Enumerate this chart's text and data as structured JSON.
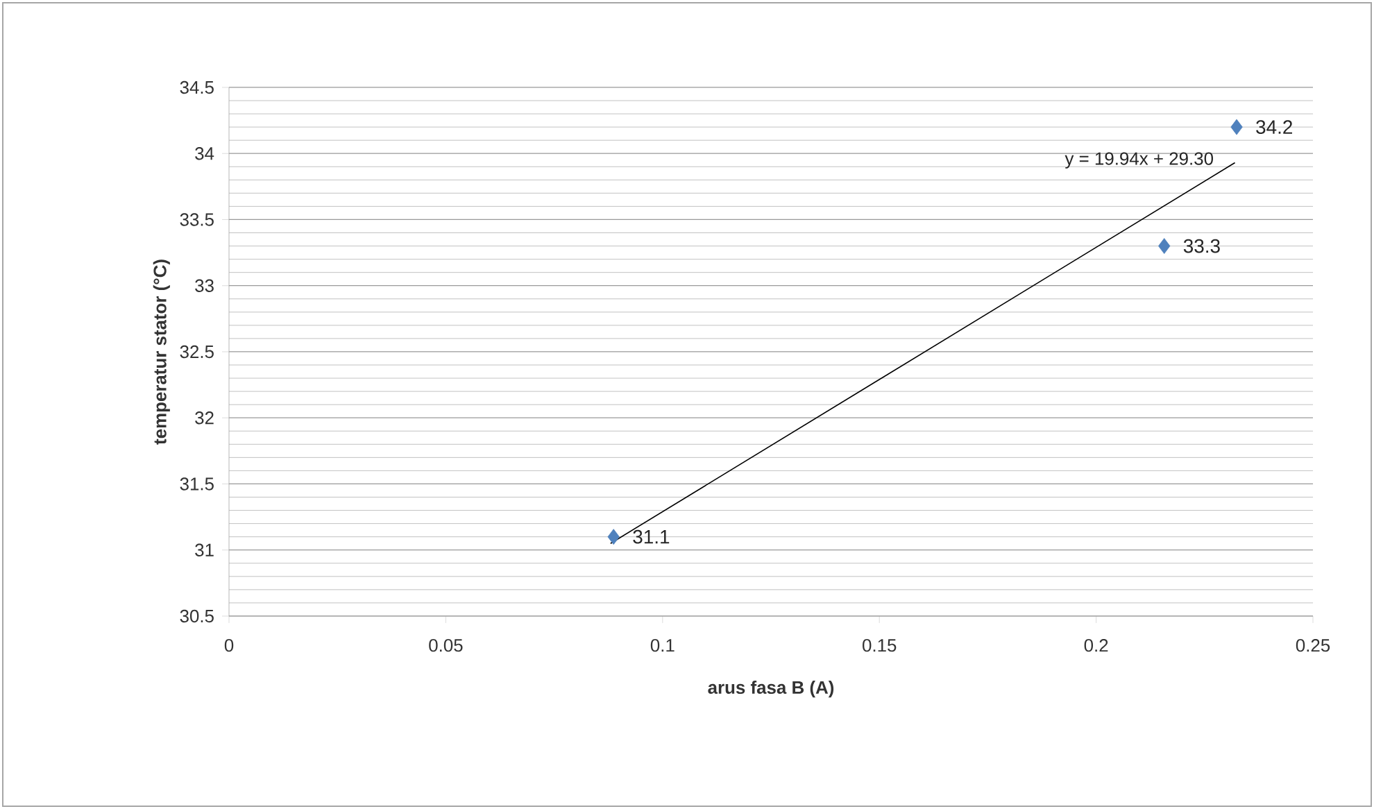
{
  "chart_data": {
    "type": "scatter",
    "xlabel": "arus fasa B (A)",
    "ylabel": "temperatur stator (°C)",
    "series": [
      {
        "color": "#4f81bd",
        "marker": "diamond",
        "x": [
          0.0887,
          0.2157,
          0.2324
        ],
        "values": [
          31.1,
          33.3,
          34.2
        ],
        "value_labels": [
          "31.1",
          "33.3",
          "34.2"
        ]
      },
      {
        "type": "line",
        "marker": "none",
        "color": "#000000",
        "x": [
          0.088,
          0.232
        ],
        "values": [
          31.05,
          33.93
        ]
      }
    ],
    "annotations": [
      "y = 19.94x + 29.30"
    ],
    "grid": "y",
    "xlim": [
      0,
      0.25
    ],
    "xticks": [
      0,
      0.05,
      0.1,
      0.15,
      0.2,
      0.25
    ],
    "ylim": [
      30.5,
      34.5
    ],
    "yticks": [
      30.5,
      31,
      31.5,
      32,
      32.5,
      33,
      33.5,
      34,
      34.5
    ]
  }
}
